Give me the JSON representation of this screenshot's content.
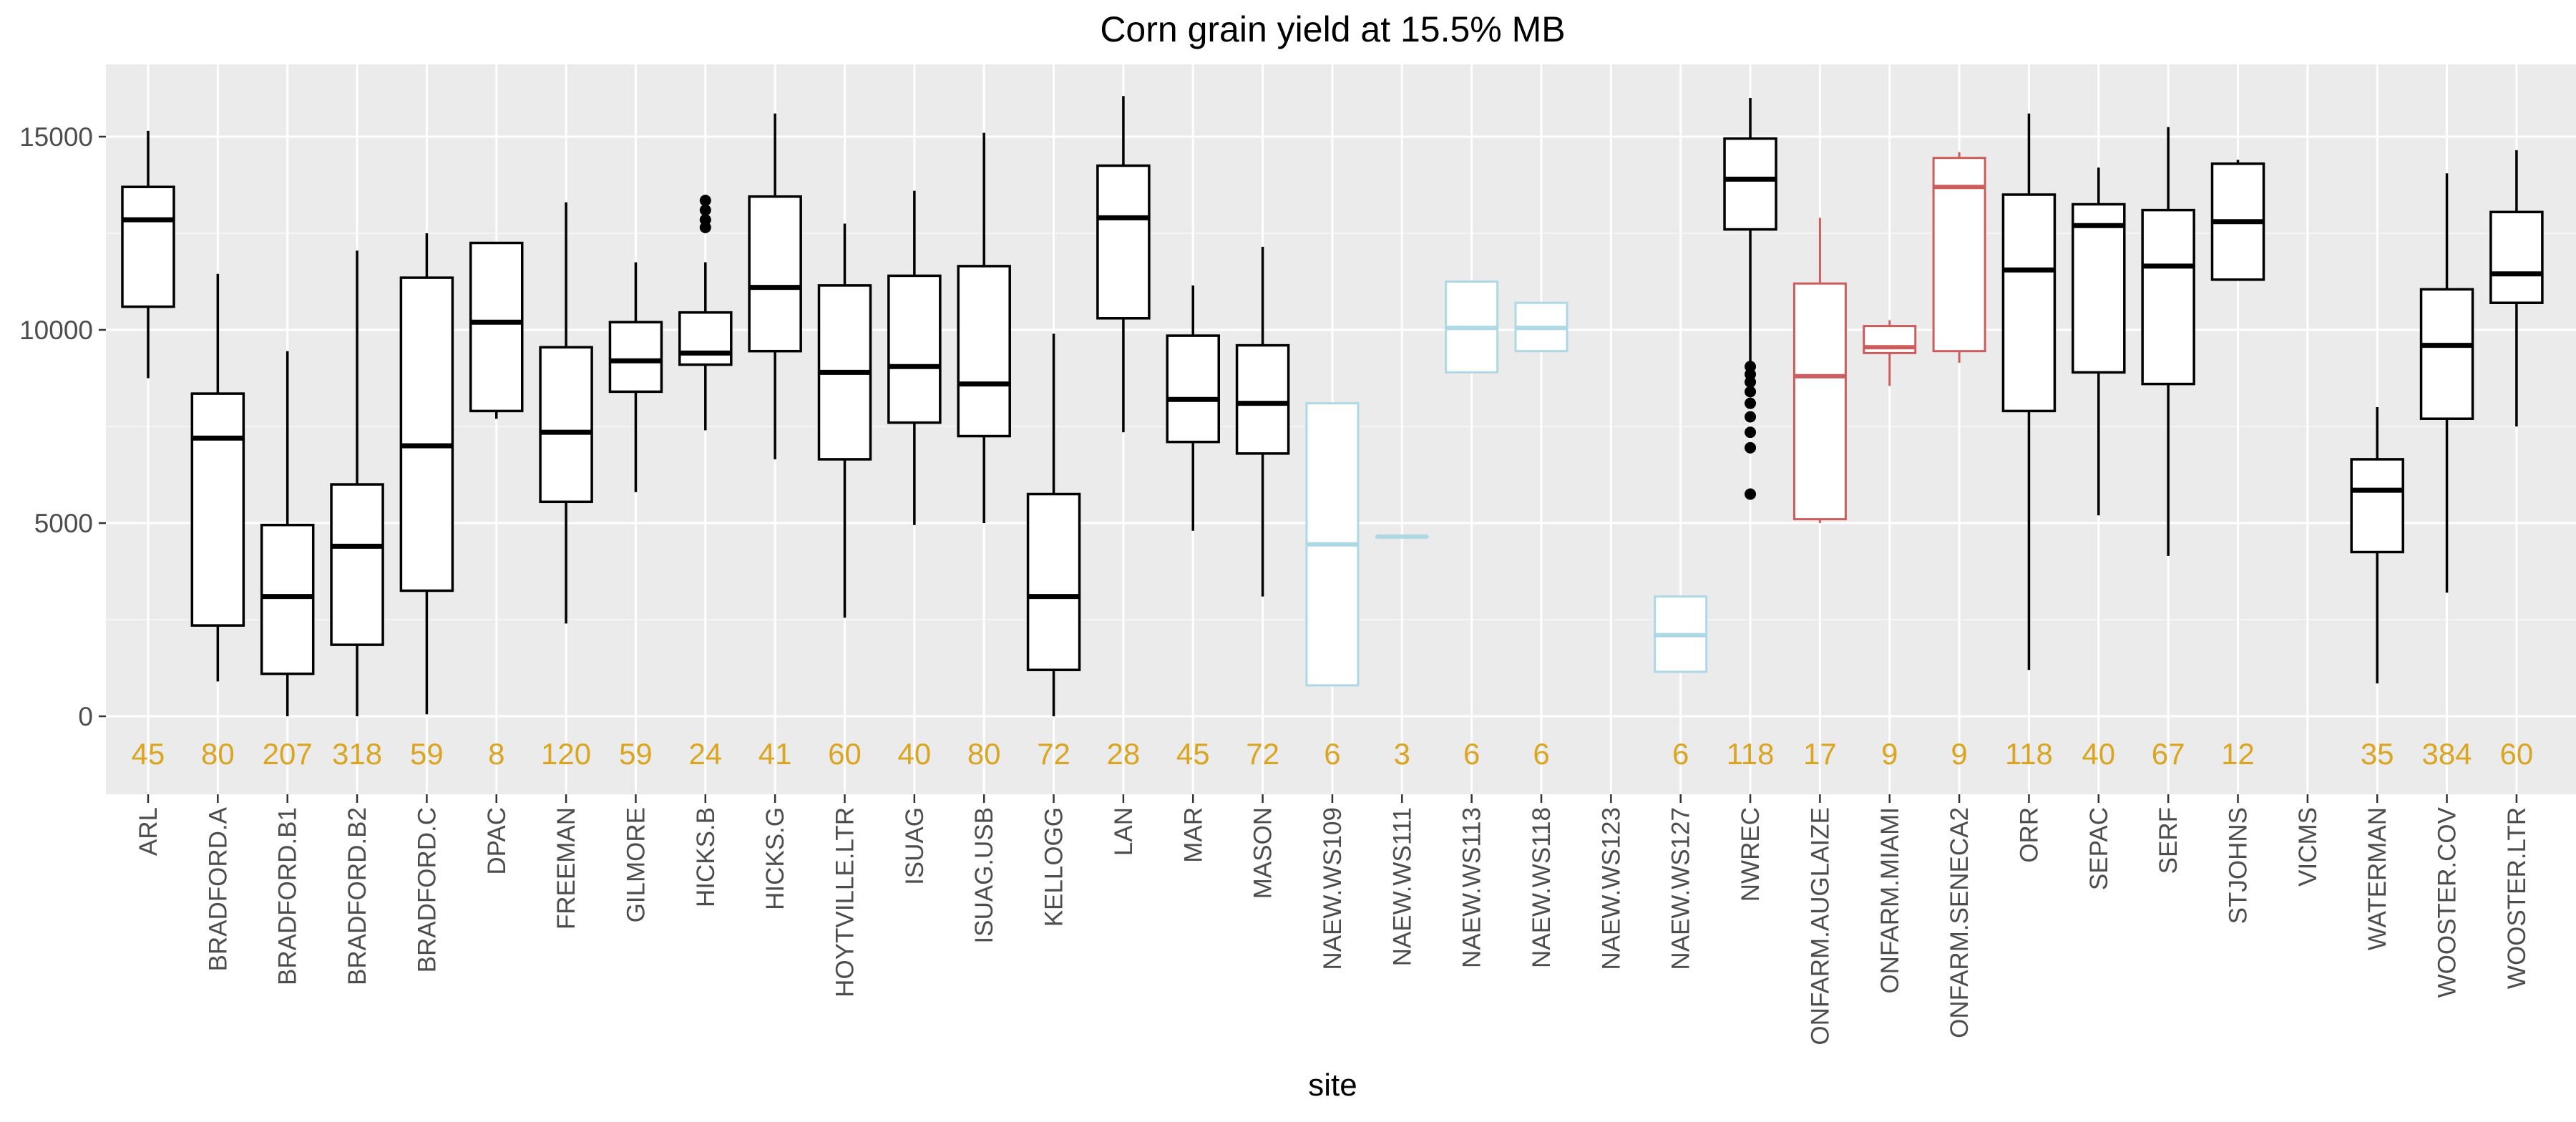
{
  "chart_data": {
    "type": "box",
    "title": "Corn grain yield at 15.5% MB",
    "xlabel": "site",
    "ylabel": "",
    "ylim": [
      -2000,
      17000
    ],
    "yticks": [
      0,
      5000,
      10000,
      15000
    ],
    "grid": true,
    "colors": {
      "panel": "#EBEBEB",
      "grid_major": "#FFFFFF",
      "default_box": "#000000",
      "naew_box": "#ADD8E6",
      "onfarm_box": "#CD5C5C",
      "count_label": "#DAA520",
      "axis_text": "#4D4D4D"
    },
    "sites": [
      {
        "site": "ARL",
        "n": "45",
        "color": "#000000",
        "min": 8750,
        "q1": 10600,
        "median": 12850,
        "q3": 13700,
        "max": 15150,
        "outliers": []
      },
      {
        "site": "BRADFORD.A",
        "n": "80",
        "color": "#000000",
        "min": 900,
        "q1": 2350,
        "median": 7200,
        "q3": 8350,
        "max": 11450,
        "outliers": []
      },
      {
        "site": "BRADFORD.B1",
        "n": "207",
        "color": "#000000",
        "min": 0,
        "q1": 1100,
        "median": 3100,
        "q3": 4950,
        "max": 9450,
        "outliers": []
      },
      {
        "site": "BRADFORD.B2",
        "n": "318",
        "color": "#000000",
        "min": 0,
        "q1": 1850,
        "median": 4400,
        "q3": 6000,
        "max": 12050,
        "outliers": []
      },
      {
        "site": "BRADFORD.C",
        "n": "59",
        "color": "#000000",
        "min": 50,
        "q1": 3250,
        "median": 7000,
        "q3": 11350,
        "max": 12500,
        "outliers": []
      },
      {
        "site": "DPAC",
        "n": "8",
        "color": "#000000",
        "min": 7700,
        "q1": 7900,
        "median": 10200,
        "q3": 12250,
        "max": 12250,
        "outliers": []
      },
      {
        "site": "FREEMAN",
        "n": "120",
        "color": "#000000",
        "min": 2400,
        "q1": 5550,
        "median": 7350,
        "q3": 9550,
        "max": 13300,
        "outliers": []
      },
      {
        "site": "GILMORE",
        "n": "59",
        "color": "#000000",
        "min": 5800,
        "q1": 8400,
        "median": 9200,
        "q3": 10200,
        "max": 11750,
        "outliers": []
      },
      {
        "site": "HICKS.B",
        "n": "24",
        "color": "#000000",
        "min": 7400,
        "q1": 9100,
        "median": 9400,
        "q3": 10450,
        "max": 11750,
        "outliers": [
          12650,
          12850,
          13100,
          13350
        ]
      },
      {
        "site": "HICKS.G",
        "n": "41",
        "color": "#000000",
        "min": 6650,
        "q1": 9450,
        "median": 11100,
        "q3": 13450,
        "max": 15600,
        "outliers": []
      },
      {
        "site": "HOYTVILLE.LTR",
        "n": "60",
        "color": "#000000",
        "min": 2550,
        "q1": 6650,
        "median": 8900,
        "q3": 11150,
        "max": 12750,
        "outliers": []
      },
      {
        "site": "ISUAG",
        "n": "40",
        "color": "#000000",
        "min": 4950,
        "q1": 7600,
        "median": 9050,
        "q3": 11400,
        "max": 13600,
        "outliers": []
      },
      {
        "site": "ISUAG.USB",
        "n": "80",
        "color": "#000000",
        "min": 5000,
        "q1": 7250,
        "median": 8600,
        "q3": 11650,
        "max": 15100,
        "outliers": []
      },
      {
        "site": "KELLOGG",
        "n": "72",
        "color": "#000000",
        "min": 0,
        "q1": 1200,
        "median": 3100,
        "q3": 5750,
        "max": 9900,
        "outliers": []
      },
      {
        "site": "LAN",
        "n": "28",
        "color": "#000000",
        "min": 7350,
        "q1": 10300,
        "median": 12900,
        "q3": 14250,
        "max": 16050,
        "outliers": []
      },
      {
        "site": "MAR",
        "n": "45",
        "color": "#000000",
        "min": 4800,
        "q1": 7100,
        "median": 8200,
        "q3": 9850,
        "max": 11150,
        "outliers": []
      },
      {
        "site": "MASON",
        "n": "72",
        "color": "#000000",
        "min": 3100,
        "q1": 6800,
        "median": 8100,
        "q3": 9600,
        "max": 12150,
        "outliers": []
      },
      {
        "site": "NAEW.WS109",
        "n": "6",
        "color": "#ADD8E6",
        "min": 800,
        "q1": 800,
        "median": 4450,
        "q3": 8100,
        "max": 8100,
        "outliers": []
      },
      {
        "site": "NAEW.WS111",
        "n": "3",
        "color": "#ADD8E6",
        "min": 4650,
        "q1": 4650,
        "median": 4650,
        "q3": 4650,
        "max": 4650,
        "outliers": []
      },
      {
        "site": "NAEW.WS113",
        "n": "6",
        "color": "#ADD8E6",
        "min": 8900,
        "q1": 8900,
        "median": 10050,
        "q3": 11250,
        "max": 11250,
        "outliers": []
      },
      {
        "site": "NAEW.WS118",
        "n": "6",
        "color": "#ADD8E6",
        "min": 9450,
        "q1": 9450,
        "median": 10050,
        "q3": 10700,
        "max": 10700,
        "outliers": []
      },
      {
        "site": "NAEW.WS123",
        "n": "",
        "color": "#ADD8E6",
        "empty": true
      },
      {
        "site": "NAEW.WS127",
        "n": "6",
        "color": "#ADD8E6",
        "min": 1150,
        "q1": 1150,
        "median": 2100,
        "q3": 3100,
        "max": 3100,
        "outliers": []
      },
      {
        "site": "NWREC",
        "n": "118",
        "color": "#000000",
        "min": 9150,
        "q1": 12600,
        "median": 13900,
        "q3": 14950,
        "max": 16000,
        "outliers": [
          5750,
          6950,
          7350,
          7750,
          8100,
          8400,
          8650,
          8850,
          9050
        ]
      },
      {
        "site": "ONFARM.AUGLAIZE",
        "n": "17",
        "color": "#CD5C5C",
        "min": 5000,
        "q1": 5100,
        "median": 8800,
        "q3": 11200,
        "max": 12900,
        "outliers": []
      },
      {
        "site": "ONFARM.MIAMI",
        "n": "9",
        "color": "#CD5C5C",
        "min": 8550,
        "q1": 9400,
        "median": 9550,
        "q3": 10100,
        "max": 10250,
        "outliers": []
      },
      {
        "site": "ONFARM.SENECA2",
        "n": "9",
        "color": "#CD5C5C",
        "min": 9150,
        "q1": 9450,
        "median": 13700,
        "q3": 14450,
        "max": 14600,
        "outliers": []
      },
      {
        "site": "ORR",
        "n": "118",
        "color": "#000000",
        "min": 1200,
        "q1": 7900,
        "median": 11550,
        "q3": 13500,
        "max": 15600,
        "outliers": []
      },
      {
        "site": "SEPAC",
        "n": "40",
        "color": "#000000",
        "min": 5200,
        "q1": 8900,
        "median": 12700,
        "q3": 13250,
        "max": 14200,
        "outliers": []
      },
      {
        "site": "SERF",
        "n": "67",
        "color": "#000000",
        "min": 4150,
        "q1": 8600,
        "median": 11650,
        "q3": 13100,
        "max": 15250,
        "outliers": []
      },
      {
        "site": "STJOHNS",
        "n": "12",
        "color": "#000000",
        "min": 11300,
        "q1": 11300,
        "median": 12800,
        "q3": 14300,
        "max": 14400,
        "outliers": []
      },
      {
        "site": "VICMS",
        "n": "",
        "color": "#000000",
        "empty": true
      },
      {
        "site": "WATERMAN",
        "n": "35",
        "color": "#000000",
        "min": 850,
        "q1": 4250,
        "median": 5850,
        "q3": 6650,
        "max": 8000,
        "outliers": []
      },
      {
        "site": "WOOSTER.COV",
        "n": "384",
        "color": "#000000",
        "min": 3200,
        "q1": 7700,
        "median": 9600,
        "q3": 11050,
        "max": 14050,
        "outliers": []
      },
      {
        "site": "WOOSTER.LTR",
        "n": "60",
        "color": "#000000",
        "min": 7500,
        "q1": 10700,
        "median": 11450,
        "q3": 13050,
        "max": 14650,
        "outliers": []
      }
    ]
  }
}
